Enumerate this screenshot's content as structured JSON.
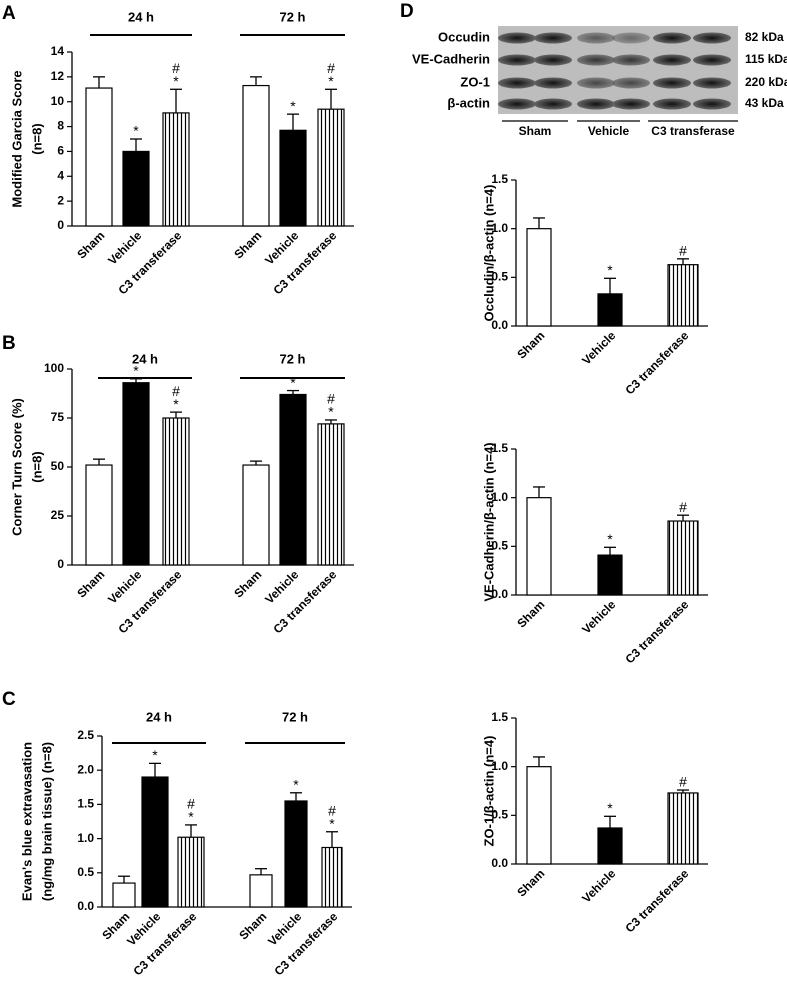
{
  "chart_data": [
    {
      "panel": "A",
      "type": "bar",
      "ylabel": [
        "Modified Garcia Score",
        "(n=8)"
      ],
      "ylim": [
        0,
        14
      ],
      "yticks": [
        0,
        2,
        4,
        6,
        8,
        10,
        12,
        14
      ],
      "categories": [
        "Sham",
        "Vehicle",
        "C3 transferase"
      ],
      "fills": [
        "white",
        "black",
        "stripes"
      ],
      "groups": [
        {
          "label": "24 h",
          "values": [
            11.1,
            6.0,
            9.1
          ],
          "errors": [
            0.9,
            1.0,
            1.9
          ],
          "annotations": [
            [],
            [
              "*"
            ],
            [
              "#",
              "*"
            ]
          ]
        },
        {
          "label": "72 h",
          "values": [
            11.3,
            7.7,
            9.4
          ],
          "errors": [
            0.7,
            1.3,
            1.6
          ],
          "annotations": [
            [],
            [
              "*"
            ],
            [
              "#",
              "*"
            ]
          ]
        }
      ]
    },
    {
      "panel": "B",
      "type": "bar",
      "ylabel": [
        "Corner Turn Score (%)",
        "(n=8)"
      ],
      "ylim": [
        0,
        100
      ],
      "yticks": [
        0,
        25,
        50,
        75,
        100
      ],
      "categories": [
        "Sham",
        "Vehicle",
        "C3 transferase"
      ],
      "fills": [
        "white",
        "black",
        "stripes"
      ],
      "groups": [
        {
          "label": "24 h",
          "values": [
            51,
            93,
            75
          ],
          "errors": [
            3,
            2,
            3
          ],
          "annotations": [
            [],
            [
              "*"
            ],
            [
              "#",
              "*"
            ]
          ]
        },
        {
          "label": "72 h",
          "values": [
            51,
            87,
            72
          ],
          "errors": [
            2,
            2,
            2
          ],
          "annotations": [
            [],
            [
              "*"
            ],
            [
              "#",
              "*"
            ]
          ]
        }
      ]
    },
    {
      "panel": "C",
      "type": "bar",
      "ylabel": [
        "Evan's blue extravasation",
        "(ng/mg brain tissue) (n=8)"
      ],
      "ylim": [
        0,
        2.5
      ],
      "yticks": [
        {
          "value": 0,
          "label": "0.0"
        },
        0.5,
        {
          "value": 1,
          "label": "1.0"
        },
        1.5,
        {
          "value": 2,
          "label": "2.0"
        },
        2.5
      ],
      "categories": [
        "Sham",
        "Vehicle",
        "C3 transferase"
      ],
      "fills": [
        "white",
        "black",
        "stripes"
      ],
      "groups": [
        {
          "label": "24 h",
          "values": [
            0.35,
            1.9,
            1.02
          ],
          "errors": [
            0.1,
            0.2,
            0.18
          ],
          "annotations": [
            [],
            [
              "*"
            ],
            [
              "#",
              "*"
            ]
          ]
        },
        {
          "label": "72 h",
          "values": [
            0.47,
            1.55,
            0.87
          ],
          "errors": [
            0.09,
            0.12,
            0.23
          ],
          "annotations": [
            [],
            [
              "*"
            ],
            [
              "#",
              "*"
            ]
          ]
        }
      ]
    },
    {
      "type": "bar",
      "ylabel": [
        "Occludin/β-actin (n=4)"
      ],
      "ylim": [
        0,
        1.5
      ],
      "yticks": [
        {
          "value": 0,
          "label": "0.0"
        },
        0.5,
        {
          "value": 1,
          "label": "1.0"
        },
        1.5
      ],
      "categories": [
        "Sham",
        "Vehicle",
        "C3 transferase"
      ],
      "fills": [
        "white",
        "black",
        "stripes"
      ],
      "groups": [
        {
          "values": [
            1.0,
            0.33,
            0.63
          ],
          "errors": [
            0.11,
            0.16,
            0.06
          ],
          "annotations": [
            [],
            [
              "*"
            ],
            [
              "#"
            ]
          ]
        }
      ]
    },
    {
      "type": "bar",
      "ylabel": [
        "VE-Cadherin/β-actin (n=4)"
      ],
      "ylim": [
        0,
        1.5
      ],
      "yticks": [
        {
          "value": 0,
          "label": "0.0"
        },
        0.5,
        {
          "value": 1,
          "label": "1.0"
        },
        1.5
      ],
      "categories": [
        "Sham",
        "Vehicle",
        "C3 transferase"
      ],
      "fills": [
        "white",
        "black",
        "stripes"
      ],
      "groups": [
        {
          "values": [
            1.0,
            0.41,
            0.76
          ],
          "errors": [
            0.11,
            0.08,
            0.06
          ],
          "annotations": [
            [],
            [
              "*"
            ],
            [
              "#"
            ]
          ]
        }
      ]
    },
    {
      "type": "bar",
      "ylabel": [
        "ZO-1/β-actin (n=4)"
      ],
      "ylim": [
        0,
        1.5
      ],
      "yticks": [
        {
          "value": 0,
          "label": "0.0"
        },
        0.5,
        {
          "value": 1,
          "label": "1.0"
        },
        1.5
      ],
      "categories": [
        "Sham",
        "Vehicle",
        "C3 transferase"
      ],
      "fills": [
        "white",
        "black",
        "stripes"
      ],
      "groups": [
        {
          "values": [
            1.0,
            0.37,
            0.73
          ],
          "errors": [
            0.1,
            0.12,
            0.03
          ],
          "annotations": [
            [],
            [
              "*"
            ],
            [
              "#"
            ]
          ]
        }
      ]
    }
  ],
  "blot": {
    "panel": "D",
    "rows": [
      {
        "protein": "Occudin",
        "size": "82 kDa"
      },
      {
        "protein": "VE-Cadherin",
        "size": "115 kDa"
      },
      {
        "protein": "ZO-1",
        "size": "220 kDa"
      },
      {
        "protein": "β-actin",
        "size": "43 kDa"
      }
    ],
    "lanes": [
      "Sham",
      "Vehicle",
      "C3 transferase"
    ]
  }
}
